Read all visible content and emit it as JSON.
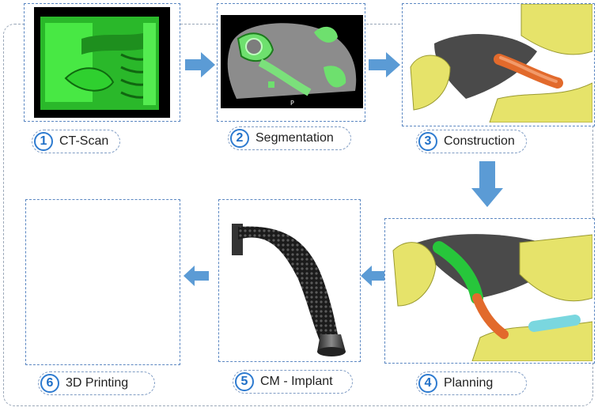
{
  "colors": {
    "arrow": "#5b9bd5",
    "panel_border": "#5b87c2",
    "number_circle": "#2e7bd0",
    "bone_green": "#3ee23a",
    "bone_yellow": "#e6e36a",
    "implant_orange": "#e26a2c"
  },
  "steps": [
    {
      "number": "1",
      "label": "CT-Scan"
    },
    {
      "number": "2",
      "label": "Segmentation"
    },
    {
      "number": "3",
      "label": "Construction"
    },
    {
      "number": "4",
      "label": "Planning"
    },
    {
      "number": "5",
      "label": "CM - Implant"
    },
    {
      "number": "6",
      "label": "3D Printing"
    }
  ],
  "ct_annotation": "P"
}
